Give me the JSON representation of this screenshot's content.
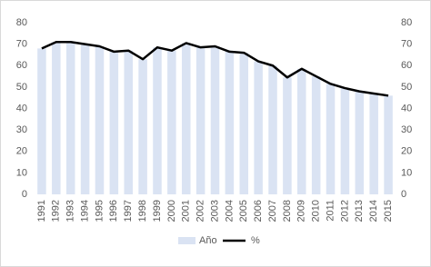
{
  "chart_data": {
    "type": "bar",
    "categories": [
      "1991",
      "1992",
      "1993",
      "1994",
      "1995",
      "1996",
      "1997",
      "1998",
      "1999",
      "2000",
      "2001",
      "2002",
      "2003",
      "2004",
      "2005",
      "2006",
      "2007",
      "2008",
      "2009",
      "2010",
      "2011",
      "2012",
      "2013",
      "2014",
      "2015"
    ],
    "series": [
      {
        "name": "Año",
        "type": "bar",
        "color": "#dae3f3",
        "values": [
          68,
          71,
          71,
          70,
          69,
          66.5,
          67,
          63,
          68.5,
          67,
          70.5,
          68.5,
          69,
          66.5,
          66,
          62,
          60,
          54.5,
          58.5,
          55,
          51.5,
          49.5,
          48,
          47,
          46
        ]
      },
      {
        "name": "%",
        "type": "line",
        "axis": "y2",
        "color": "#000000",
        "values": [
          68,
          71,
          71,
          70,
          69,
          66.5,
          67,
          63,
          68.5,
          67,
          70.5,
          68.5,
          69,
          66.5,
          66,
          62,
          60,
          54.5,
          58.5,
          55,
          51.5,
          49.5,
          48,
          47,
          46
        ]
      }
    ],
    "ylim": [
      0,
      80
    ],
    "yticks": [
      0,
      10,
      20,
      30,
      40,
      50,
      60,
      70,
      80
    ],
    "y2lim": [
      0,
      80
    ],
    "y2ticks": [
      0,
      10,
      20,
      30,
      40,
      50,
      60,
      70,
      80
    ],
    "grid": false,
    "legend": "bottom"
  }
}
